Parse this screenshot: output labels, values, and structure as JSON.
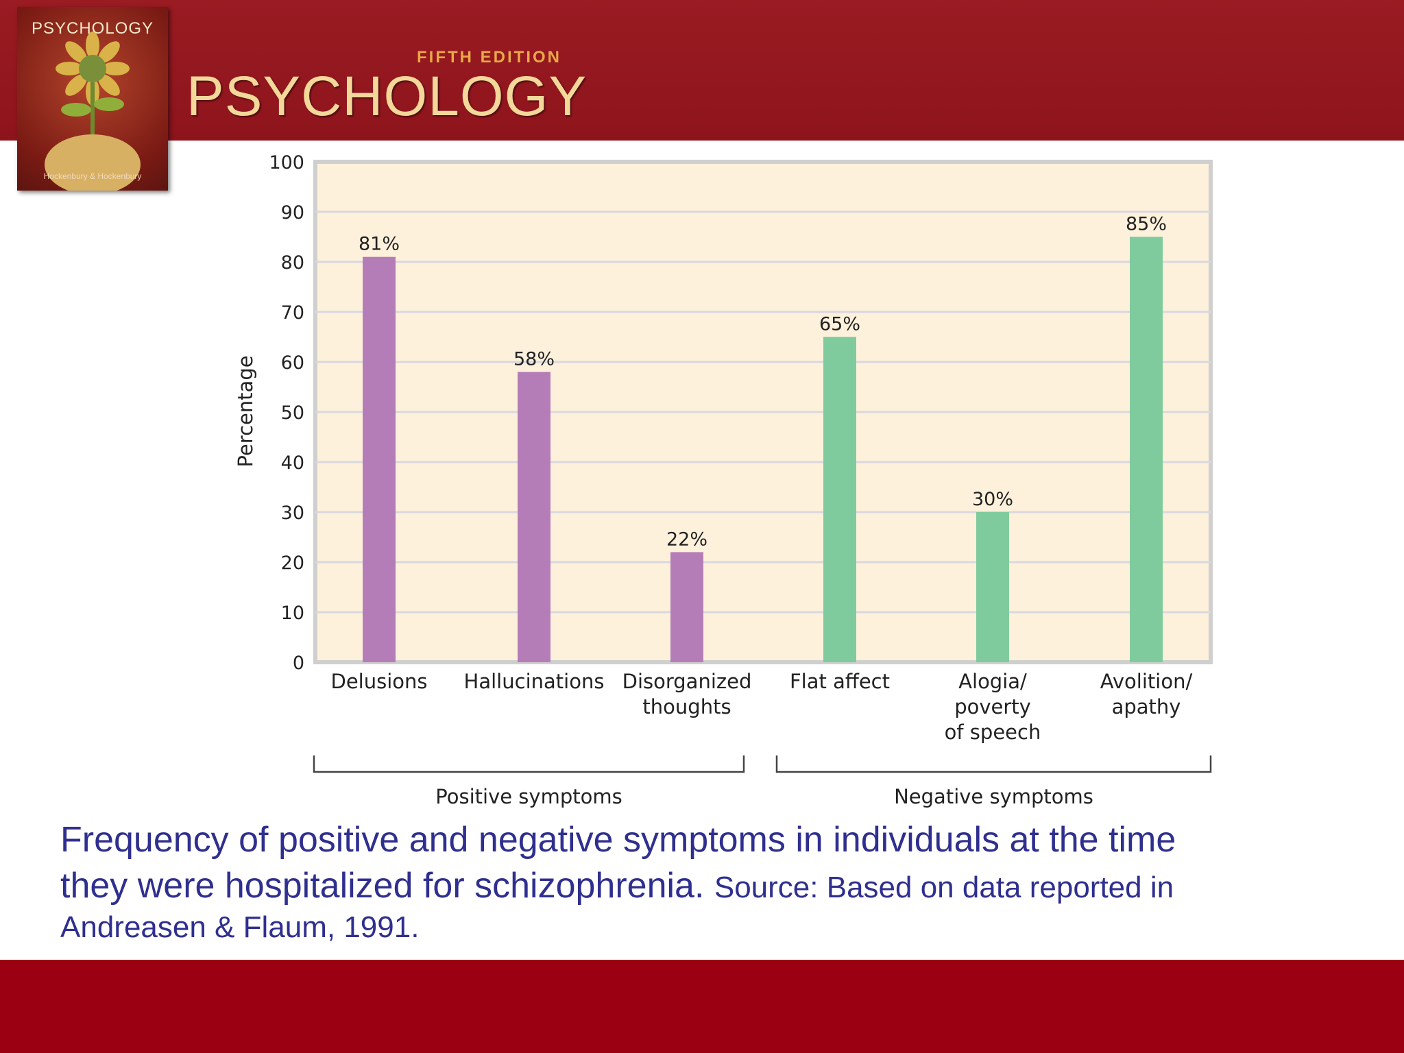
{
  "header": {
    "cover_title": "PSYCHOLOGY",
    "cover_authors": "Hockenbury & Hockenbury",
    "edition": "FIFTH EDITION",
    "brand": "PSYCHOLOGY"
  },
  "caption": {
    "main_line1": "Frequency of positive and negative symptoms in individuals at the time",
    "main_line2": "they were hospitalized for schizophrenia.",
    "source_part1": "Source: Based on data  reported in",
    "source_part2": "Andreasen & Flaum, 1991."
  },
  "chart_data": {
    "type": "bar",
    "ylabel": "Percentage",
    "ylim": [
      0,
      100
    ],
    "yticks": [
      0,
      10,
      20,
      30,
      40,
      50,
      60,
      70,
      80,
      90,
      100
    ],
    "grid": true,
    "categories": [
      [
        "Delusions"
      ],
      [
        "Hallucinations"
      ],
      [
        "Disorganized",
        "thoughts"
      ],
      [
        "Flat affect"
      ],
      [
        "Alogia/",
        "poverty",
        "of speech"
      ],
      [
        "Avolition/",
        "apathy"
      ]
    ],
    "values": [
      81,
      58,
      22,
      65,
      30,
      85
    ],
    "data_labels": [
      "81%",
      "58%",
      "22%",
      "65%",
      "30%",
      "85%"
    ],
    "groups": [
      {
        "label": "Positive symptoms",
        "start": 0,
        "end": 2,
        "color": "#b57db7"
      },
      {
        "label": "Negative symptoms",
        "start": 3,
        "end": 5,
        "color": "#7fcb9d"
      }
    ],
    "background_color": "#fef1dc"
  }
}
